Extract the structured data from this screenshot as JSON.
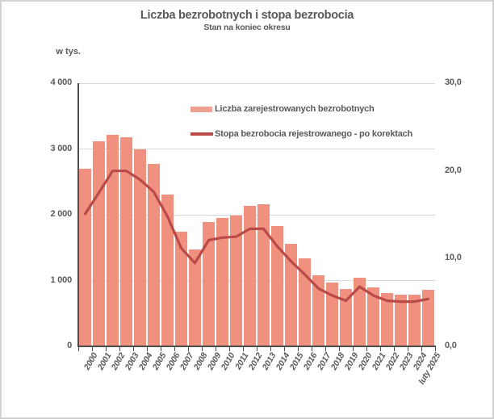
{
  "header": {
    "title": "Liczba bezrobotnych i stopa bezrobocia",
    "subtitle": "Stan na koniec okresu",
    "left_axis_unit_label": "w tys."
  },
  "colors": {
    "bar_fill": "#f0907f",
    "legend_bar_swatch": "#f1a191",
    "line_stroke": "#b94a48",
    "text": "#595959",
    "gridline": "#d9d9d9",
    "axis_line": "#4d4d4d",
    "bar_separator": "#ffffff"
  },
  "chart_data": {
    "type": "bar",
    "combo": "bar+line",
    "title": "Liczba bezrobotnych i stopa bezrobocia",
    "subtitle": "Stan na koniec okresu",
    "categories": [
      "2000",
      "2001",
      "2002",
      "2003",
      "2004",
      "2005",
      "2006",
      "2007",
      "2008",
      "2009",
      "2010",
      "2011",
      "2012",
      "2013",
      "2014",
      "2015",
      "2016",
      "2017",
      "2018",
      "2019",
      "2020",
      "2021",
      "2022",
      "2023",
      "2024",
      "luty 2025"
    ],
    "series": [
      {
        "name": "Liczba zarejestrowanych bezrobotnych",
        "type": "bar",
        "axis": "left",
        "unit": "tys.",
        "color": "#f0907f",
        "values": [
          2702.6,
          3115.1,
          3217.0,
          3175.7,
          2999.6,
          2773.0,
          2309.4,
          1746.6,
          1473.8,
          1892.7,
          1954.7,
          1982.7,
          2136.8,
          2157.9,
          1825.2,
          1563.3,
          1335.2,
          1081.7,
          968.9,
          866.4,
          1046.4,
          895.2,
          812.3,
          788.2,
          786.3,
          853.9
        ]
      },
      {
        "name": "Stopa bezrobocia rejestrowanego - po korektach",
        "type": "line",
        "axis": "right",
        "unit": "%",
        "color": "#b94a48",
        "values": [
          15.1,
          17.5,
          20.0,
          20.0,
          19.0,
          17.6,
          14.8,
          11.2,
          9.5,
          12.1,
          12.4,
          12.5,
          13.4,
          13.4,
          11.4,
          9.7,
          8.2,
          6.6,
          5.8,
          5.2,
          6.8,
          5.8,
          5.2,
          5.1,
          5.1,
          5.4
        ]
      }
    ],
    "left_axis": {
      "label": "w tys.",
      "min": 0,
      "max": 4000,
      "tick_values": [
        0,
        1000,
        2000,
        3000,
        4000
      ],
      "tick_labels": [
        "0",
        "1 000",
        "2 000",
        "3 000",
        "4 000"
      ]
    },
    "right_axis": {
      "min": 0,
      "max": 30,
      "tick_values": [
        0,
        10,
        20,
        30
      ],
      "tick_labels": [
        "0,0",
        "10,0",
        "20,0",
        "30,0"
      ]
    },
    "grid": true,
    "legend_position": "inside-top-right"
  }
}
